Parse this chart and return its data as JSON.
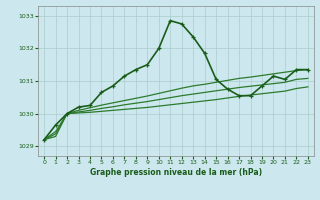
{
  "title": "Graphe pression niveau de la mer (hPa)",
  "bg_color": "#cce8ee",
  "grid_color": "#aacccc",
  "line_color_dark": "#1a5c1a",
  "line_color_mid": "#2d7a2d",
  "xlim": [
    -0.5,
    23.5
  ],
  "ylim": [
    1028.7,
    1033.3
  ],
  "yticks": [
    1029,
    1030,
    1031,
    1032,
    1033
  ],
  "xticks": [
    0,
    1,
    2,
    3,
    4,
    5,
    6,
    7,
    8,
    9,
    10,
    11,
    12,
    13,
    14,
    15,
    16,
    17,
    18,
    19,
    20,
    21,
    22,
    23
  ],
  "main_x": [
    0,
    1,
    2,
    3,
    4,
    5,
    6,
    7,
    8,
    9,
    10,
    11,
    12,
    13,
    14,
    15,
    16,
    17,
    18,
    19,
    20,
    21,
    22,
    23
  ],
  "main_y": [
    1029.2,
    1029.65,
    1030.0,
    1030.2,
    1030.25,
    1030.65,
    1030.85,
    1031.15,
    1031.35,
    1031.5,
    1032.0,
    1032.85,
    1032.75,
    1032.35,
    1031.85,
    1031.05,
    1030.75,
    1030.55,
    1030.55,
    1030.85,
    1031.15,
    1031.05,
    1031.35,
    1031.35
  ],
  "line2_x": [
    0,
    1,
    2,
    3,
    4,
    5,
    6,
    7,
    8,
    9,
    10,
    11,
    12,
    13,
    14,
    15,
    16,
    17,
    18,
    19,
    20,
    21,
    22,
    23
  ],
  "line2_y": [
    1029.2,
    1029.45,
    1030.0,
    1030.1,
    1030.18,
    1030.26,
    1030.33,
    1030.4,
    1030.47,
    1030.54,
    1030.62,
    1030.7,
    1030.78,
    1030.85,
    1030.9,
    1030.96,
    1031.02,
    1031.08,
    1031.12,
    1031.17,
    1031.22,
    1031.27,
    1031.32,
    1031.35
  ],
  "line3_x": [
    0,
    1,
    2,
    3,
    4,
    5,
    6,
    7,
    8,
    9,
    10,
    11,
    12,
    13,
    14,
    15,
    16,
    17,
    18,
    19,
    20,
    21,
    22,
    23
  ],
  "line3_y": [
    1029.2,
    1029.38,
    1030.0,
    1030.05,
    1030.1,
    1030.16,
    1030.21,
    1030.27,
    1030.32,
    1030.37,
    1030.43,
    1030.49,
    1030.55,
    1030.6,
    1030.65,
    1030.7,
    1030.75,
    1030.8,
    1030.84,
    1030.88,
    1030.92,
    1030.96,
    1031.05,
    1031.08
  ],
  "line4_x": [
    0,
    1,
    2,
    3,
    4,
    5,
    6,
    7,
    8,
    9,
    10,
    11,
    12,
    13,
    14,
    15,
    16,
    17,
    18,
    19,
    20,
    21,
    22,
    23
  ],
  "line4_y": [
    1029.2,
    1029.3,
    1030.0,
    1030.02,
    1030.04,
    1030.07,
    1030.1,
    1030.13,
    1030.16,
    1030.19,
    1030.23,
    1030.27,
    1030.31,
    1030.35,
    1030.39,
    1030.43,
    1030.48,
    1030.53,
    1030.57,
    1030.61,
    1030.65,
    1030.69,
    1030.77,
    1030.82
  ]
}
